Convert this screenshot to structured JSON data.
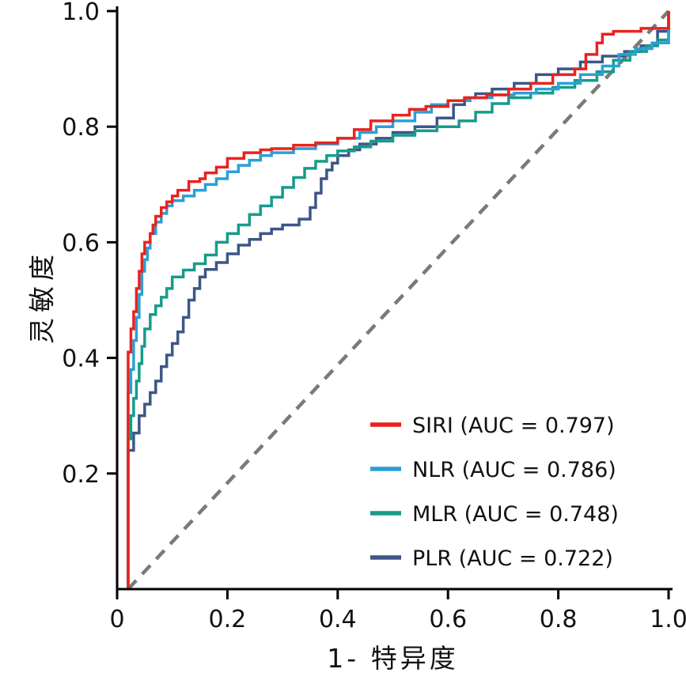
{
  "chart_data": {
    "type": "line",
    "subtype": "roc-step-curves",
    "title": "",
    "xlabel": "1- 特异度",
    "ylabel": "灵敏度",
    "xlim": [
      0,
      1.0
    ],
    "ylim": [
      0,
      1.0
    ],
    "grid": false,
    "legend_position": "lower right",
    "x_ticks": [
      0,
      0.2,
      0.4,
      0.6,
      0.8,
      1.0
    ],
    "y_ticks": [
      0.2,
      0.4,
      0.6,
      0.8,
      1.0
    ],
    "x_tick_labels": [
      "0",
      "0.2",
      "0.4",
      "0.6",
      "0.8",
      "1.0"
    ],
    "y_tick_labels": [
      "0.2",
      "0.4",
      "0.6",
      "0.8",
      "1.0"
    ],
    "axis_color": "#000000",
    "reference_line": {
      "style": "dashed",
      "color": "#7a7a7a",
      "from": [
        0.02,
        0
      ],
      "to": [
        1.0,
        1.0
      ]
    },
    "series": [
      {
        "name": "SIRI",
        "auc": 0.797,
        "color": "#e8231f",
        "points": [
          [
            0.02,
            0
          ],
          [
            0.02,
            0.37
          ],
          [
            0.025,
            0.41
          ],
          [
            0.03,
            0.45
          ],
          [
            0.035,
            0.48
          ],
          [
            0.04,
            0.52
          ],
          [
            0.045,
            0.55
          ],
          [
            0.05,
            0.58
          ],
          [
            0.06,
            0.6
          ],
          [
            0.065,
            0.615
          ],
          [
            0.07,
            0.63
          ],
          [
            0.08,
            0.645
          ],
          [
            0.09,
            0.66
          ],
          [
            0.1,
            0.67
          ],
          [
            0.11,
            0.68
          ],
          [
            0.13,
            0.69
          ],
          [
            0.15,
            0.705
          ],
          [
            0.16,
            0.71
          ],
          [
            0.18,
            0.72
          ],
          [
            0.2,
            0.73
          ],
          [
            0.23,
            0.745
          ],
          [
            0.26,
            0.755
          ],
          [
            0.28,
            0.76
          ],
          [
            0.32,
            0.762
          ],
          [
            0.36,
            0.768
          ],
          [
            0.4,
            0.772
          ],
          [
            0.43,
            0.78
          ],
          [
            0.46,
            0.795
          ],
          [
            0.5,
            0.81
          ],
          [
            0.53,
            0.82
          ],
          [
            0.56,
            0.83
          ],
          [
            0.6,
            0.835
          ],
          [
            0.63,
            0.845
          ],
          [
            0.67,
            0.85
          ],
          [
            0.71,
            0.855
          ],
          [
            0.75,
            0.865
          ],
          [
            0.79,
            0.875
          ],
          [
            0.83,
            0.89
          ],
          [
            0.85,
            0.9
          ],
          [
            0.87,
            0.925
          ],
          [
            0.88,
            0.945
          ],
          [
            0.9,
            0.96
          ],
          [
            0.95,
            0.965
          ],
          [
            1.0,
            0.97
          ],
          [
            1.0,
            1.0
          ]
        ]
      },
      {
        "name": "NLR",
        "auc": 0.786,
        "color": "#2b9fd6",
        "points": [
          [
            0.02,
            0
          ],
          [
            0.02,
            0.3
          ],
          [
            0.025,
            0.34
          ],
          [
            0.03,
            0.38
          ],
          [
            0.035,
            0.43
          ],
          [
            0.04,
            0.47
          ],
          [
            0.045,
            0.51
          ],
          [
            0.05,
            0.55
          ],
          [
            0.055,
            0.57
          ],
          [
            0.06,
            0.59
          ],
          [
            0.07,
            0.615
          ],
          [
            0.08,
            0.635
          ],
          [
            0.09,
            0.65
          ],
          [
            0.1,
            0.663
          ],
          [
            0.12,
            0.672
          ],
          [
            0.14,
            0.68
          ],
          [
            0.16,
            0.69
          ],
          [
            0.18,
            0.7
          ],
          [
            0.2,
            0.71
          ],
          [
            0.22,
            0.722
          ],
          [
            0.24,
            0.733
          ],
          [
            0.26,
            0.742
          ],
          [
            0.28,
            0.75
          ],
          [
            0.32,
            0.755
          ],
          [
            0.36,
            0.762
          ],
          [
            0.4,
            0.77
          ],
          [
            0.44,
            0.78
          ],
          [
            0.47,
            0.79
          ],
          [
            0.5,
            0.8
          ],
          [
            0.54,
            0.81
          ],
          [
            0.57,
            0.825
          ],
          [
            0.6,
            0.838
          ],
          [
            0.64,
            0.845
          ],
          [
            0.68,
            0.85
          ],
          [
            0.72,
            0.855
          ],
          [
            0.76,
            0.858
          ],
          [
            0.8,
            0.865
          ],
          [
            0.84,
            0.875
          ],
          [
            0.88,
            0.89
          ],
          [
            0.91,
            0.905
          ],
          [
            0.94,
            0.925
          ],
          [
            0.97,
            0.935
          ],
          [
            1.0,
            0.945
          ],
          [
            1.0,
            1.0
          ]
        ]
      },
      {
        "name": "MLR",
        "auc": 0.748,
        "color": "#179b8b",
        "points": [
          [
            0.02,
            0
          ],
          [
            0.02,
            0.22
          ],
          [
            0.025,
            0.26
          ],
          [
            0.03,
            0.3
          ],
          [
            0.035,
            0.33
          ],
          [
            0.04,
            0.36
          ],
          [
            0.045,
            0.39
          ],
          [
            0.05,
            0.42
          ],
          [
            0.06,
            0.45
          ],
          [
            0.07,
            0.475
          ],
          [
            0.08,
            0.49
          ],
          [
            0.09,
            0.505
          ],
          [
            0.1,
            0.52
          ],
          [
            0.12,
            0.54
          ],
          [
            0.14,
            0.552
          ],
          [
            0.16,
            0.563
          ],
          [
            0.18,
            0.578
          ],
          [
            0.2,
            0.6
          ],
          [
            0.22,
            0.615
          ],
          [
            0.24,
            0.63
          ],
          [
            0.26,
            0.648
          ],
          [
            0.28,
            0.663
          ],
          [
            0.3,
            0.678
          ],
          [
            0.32,
            0.695
          ],
          [
            0.34,
            0.712
          ],
          [
            0.36,
            0.728
          ],
          [
            0.38,
            0.74
          ],
          [
            0.4,
            0.75
          ],
          [
            0.43,
            0.758
          ],
          [
            0.46,
            0.765
          ],
          [
            0.5,
            0.775
          ],
          [
            0.54,
            0.785
          ],
          [
            0.58,
            0.793
          ],
          [
            0.62,
            0.8
          ],
          [
            0.65,
            0.81
          ],
          [
            0.68,
            0.825
          ],
          [
            0.71,
            0.84
          ],
          [
            0.75,
            0.85
          ],
          [
            0.79,
            0.858
          ],
          [
            0.83,
            0.868
          ],
          [
            0.87,
            0.88
          ],
          [
            0.9,
            0.895
          ],
          [
            0.93,
            0.915
          ],
          [
            0.96,
            0.93
          ],
          [
            0.98,
            0.94
          ],
          [
            1.0,
            0.95
          ],
          [
            1.0,
            1.0
          ]
        ]
      },
      {
        "name": "PLR",
        "auc": 0.722,
        "color": "#3c5687",
        "points": [
          [
            0.02,
            0
          ],
          [
            0.02,
            0.2
          ],
          [
            0.03,
            0.24
          ],
          [
            0.04,
            0.27
          ],
          [
            0.05,
            0.3
          ],
          [
            0.06,
            0.32
          ],
          [
            0.07,
            0.34
          ],
          [
            0.08,
            0.36
          ],
          [
            0.09,
            0.385
          ],
          [
            0.1,
            0.405
          ],
          [
            0.11,
            0.425
          ],
          [
            0.12,
            0.445
          ],
          [
            0.13,
            0.47
          ],
          [
            0.14,
            0.5
          ],
          [
            0.15,
            0.52
          ],
          [
            0.16,
            0.54
          ],
          [
            0.18,
            0.553
          ],
          [
            0.2,
            0.565
          ],
          [
            0.22,
            0.58
          ],
          [
            0.24,
            0.595
          ],
          [
            0.26,
            0.605
          ],
          [
            0.28,
            0.615
          ],
          [
            0.3,
            0.623
          ],
          [
            0.33,
            0.63
          ],
          [
            0.35,
            0.64
          ],
          [
            0.36,
            0.66
          ],
          [
            0.37,
            0.685
          ],
          [
            0.38,
            0.71
          ],
          [
            0.39,
            0.725
          ],
          [
            0.4,
            0.737
          ],
          [
            0.42,
            0.75
          ],
          [
            0.44,
            0.76
          ],
          [
            0.47,
            0.77
          ],
          [
            0.5,
            0.78
          ],
          [
            0.54,
            0.79
          ],
          [
            0.58,
            0.8
          ],
          [
            0.61,
            0.815
          ],
          [
            0.63,
            0.838
          ],
          [
            0.65,
            0.85
          ],
          [
            0.68,
            0.857
          ],
          [
            0.72,
            0.865
          ],
          [
            0.76,
            0.875
          ],
          [
            0.8,
            0.89
          ],
          [
            0.84,
            0.9
          ],
          [
            0.88,
            0.912
          ],
          [
            0.92,
            0.922
          ],
          [
            0.95,
            0.93
          ],
          [
            0.98,
            0.94
          ],
          [
            1.0,
            0.965
          ],
          [
            1.0,
            1.0
          ]
        ]
      }
    ],
    "legend": [
      {
        "name": "SIRI",
        "label": "SIRI (AUC = 0.797)",
        "color": "#e8231f"
      },
      {
        "name": "NLR",
        "label": "NLR (AUC = 0.786)",
        "color": "#2b9fd6"
      },
      {
        "name": "MLR",
        "label": "MLR (AUC = 0.748)",
        "color": "#179b8b"
      },
      {
        "name": "PLR",
        "label": "PLR (AUC = 0.722)",
        "color": "#3c5687"
      }
    ]
  }
}
